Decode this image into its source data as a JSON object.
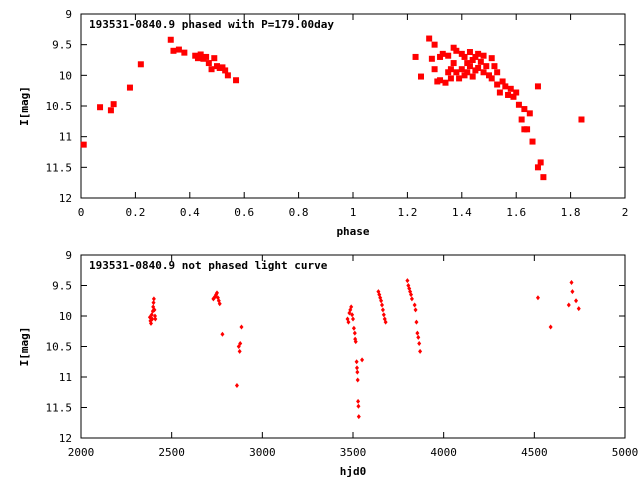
{
  "chart_data": [
    {
      "type": "scatter",
      "title": "193531-0840.9 phased with P=179.00day",
      "xlabel": "phase",
      "ylabel": "I[mag]",
      "xlim": [
        0,
        2
      ],
      "ylim": [
        12,
        9
      ],
      "y_inverted": true,
      "xticks": [
        "0",
        "0.2",
        "0.4",
        "0.6",
        "0.8",
        "1",
        "1.2",
        "1.4",
        "1.6",
        "1.8",
        "2"
      ],
      "yticks": [
        "9",
        "9.5",
        "10",
        "10.5",
        "11",
        "11.5",
        "12"
      ],
      "marker_color": "#ff0000",
      "points": [
        [
          0.01,
          11.13
        ],
        [
          0.07,
          10.52
        ],
        [
          0.11,
          10.57
        ],
        [
          0.12,
          10.47
        ],
        [
          0.18,
          10.2
        ],
        [
          0.22,
          9.82
        ],
        [
          0.33,
          9.42
        ],
        [
          0.34,
          9.6
        ],
        [
          0.36,
          9.58
        ],
        [
          0.38,
          9.63
        ],
        [
          0.42,
          9.68
        ],
        [
          0.43,
          9.72
        ],
        [
          0.44,
          9.66
        ],
        [
          0.45,
          9.73
        ],
        [
          0.46,
          9.7
        ],
        [
          0.47,
          9.8
        ],
        [
          0.48,
          9.9
        ],
        [
          0.49,
          9.72
        ],
        [
          0.5,
          9.85
        ],
        [
          0.51,
          9.88
        ],
        [
          0.52,
          9.87
        ],
        [
          0.53,
          9.92
        ],
        [
          0.54,
          10.0
        ],
        [
          0.57,
          10.08
        ],
        [
          1.23,
          9.7
        ],
        [
          1.25,
          10.02
        ],
        [
          1.28,
          9.4
        ],
        [
          1.29,
          9.73
        ],
        [
          1.3,
          9.5
        ],
        [
          1.3,
          9.9
        ],
        [
          1.31,
          10.1
        ],
        [
          1.32,
          9.7
        ],
        [
          1.32,
          10.08
        ],
        [
          1.33,
          9.65
        ],
        [
          1.34,
          10.12
        ],
        [
          1.35,
          9.68
        ],
        [
          1.35,
          9.95
        ],
        [
          1.36,
          9.9
        ],
        [
          1.36,
          10.05
        ],
        [
          1.37,
          9.55
        ],
        [
          1.37,
          9.8
        ],
        [
          1.38,
          9.6
        ],
        [
          1.38,
          9.95
        ],
        [
          1.39,
          10.05
        ],
        [
          1.4,
          9.65
        ],
        [
          1.4,
          9.9
        ],
        [
          1.41,
          9.7
        ],
        [
          1.41,
          10.0
        ],
        [
          1.42,
          9.8
        ],
        [
          1.42,
          9.95
        ],
        [
          1.43,
          9.62
        ],
        [
          1.43,
          9.85
        ],
        [
          1.44,
          9.75
        ],
        [
          1.44,
          10.02
        ],
        [
          1.45,
          9.7
        ],
        [
          1.45,
          9.92
        ],
        [
          1.46,
          9.65
        ],
        [
          1.46,
          9.88
        ],
        [
          1.47,
          9.78
        ],
        [
          1.48,
          9.95
        ],
        [
          1.48,
          9.68
        ],
        [
          1.49,
          9.85
        ],
        [
          1.5,
          10.0
        ],
        [
          1.51,
          9.72
        ],
        [
          1.51,
          10.05
        ],
        [
          1.52,
          9.85
        ],
        [
          1.53,
          10.15
        ],
        [
          1.53,
          9.95
        ],
        [
          1.54,
          10.28
        ],
        [
          1.55,
          10.1
        ],
        [
          1.56,
          10.18
        ],
        [
          1.57,
          10.32
        ],
        [
          1.58,
          10.22
        ],
        [
          1.59,
          10.35
        ],
        [
          1.6,
          10.28
        ],
        [
          1.61,
          10.48
        ],
        [
          1.62,
          10.72
        ],
        [
          1.63,
          10.55
        ],
        [
          1.63,
          10.88
        ],
        [
          1.64,
          10.88
        ],
        [
          1.65,
          10.62
        ],
        [
          1.66,
          11.08
        ],
        [
          1.68,
          11.5
        ],
        [
          1.68,
          10.18
        ],
        [
          1.69,
          11.42
        ],
        [
          1.7,
          11.66
        ],
        [
          1.84,
          10.72
        ]
      ]
    },
    {
      "type": "scatter",
      "title": "193531-0840.9 not phased light curve",
      "xlabel": "hjd0",
      "ylabel": "I[mag]",
      "xlim": [
        2000,
        5000
      ],
      "ylim": [
        12,
        9
      ],
      "y_inverted": true,
      "xticks": [
        "2000",
        "2500",
        "3000",
        "3500",
        "4000",
        "4500",
        "5000"
      ],
      "yticks": [
        "9",
        "9.5",
        "10",
        "10.5",
        "11",
        "11.5",
        "12"
      ],
      "marker_color": "#ff0000",
      "points": [
        [
          2380,
          10.02
        ],
        [
          2383,
          10.08
        ],
        [
          2386,
          10.12
        ],
        [
          2390,
          9.98
        ],
        [
          2393,
          10.05
        ],
        [
          2396,
          9.92
        ],
        [
          2398,
          9.85
        ],
        [
          2400,
          9.78
        ],
        [
          2402,
          9.72
        ],
        [
          2405,
          9.9
        ],
        [
          2408,
          10.0
        ],
        [
          2410,
          10.05
        ],
        [
          2730,
          9.72
        ],
        [
          2735,
          9.7
        ],
        [
          2740,
          9.68
        ],
        [
          2745,
          9.65
        ],
        [
          2750,
          9.62
        ],
        [
          2755,
          9.7
        ],
        [
          2760,
          9.75
        ],
        [
          2765,
          9.8
        ],
        [
          2780,
          10.3
        ],
        [
          2860,
          11.14
        ],
        [
          2870,
          10.5
        ],
        [
          2875,
          10.58
        ],
        [
          2878,
          10.45
        ],
        [
          2885,
          10.18
        ],
        [
          3470,
          10.05
        ],
        [
          3475,
          10.1
        ],
        [
          3480,
          9.95
        ],
        [
          3485,
          9.9
        ],
        [
          3490,
          9.85
        ],
        [
          3495,
          9.98
        ],
        [
          3500,
          10.05
        ],
        [
          3505,
          10.2
        ],
        [
          3510,
          10.28
        ],
        [
          3512,
          10.38
        ],
        [
          3515,
          10.42
        ],
        [
          3520,
          10.75
        ],
        [
          3522,
          10.85
        ],
        [
          3524,
          10.92
        ],
        [
          3526,
          11.05
        ],
        [
          3528,
          11.4
        ],
        [
          3530,
          11.48
        ],
        [
          3532,
          11.65
        ],
        [
          3550,
          10.72
        ],
        [
          3640,
          9.6
        ],
        [
          3645,
          9.65
        ],
        [
          3650,
          9.7
        ],
        [
          3655,
          9.75
        ],
        [
          3660,
          9.82
        ],
        [
          3665,
          9.9
        ],
        [
          3670,
          9.98
        ],
        [
          3675,
          10.05
        ],
        [
          3680,
          10.1
        ],
        [
          3800,
          9.42
        ],
        [
          3805,
          9.5
        ],
        [
          3810,
          9.55
        ],
        [
          3815,
          9.6
        ],
        [
          3820,
          9.65
        ],
        [
          3825,
          9.72
        ],
        [
          3840,
          9.82
        ],
        [
          3845,
          9.9
        ],
        [
          3850,
          10.1
        ],
        [
          3855,
          10.28
        ],
        [
          3860,
          10.35
        ],
        [
          3865,
          10.45
        ],
        [
          3870,
          10.58
        ],
        [
          4520,
          9.7
        ],
        [
          4590,
          10.18
        ],
        [
          4690,
          9.82
        ],
        [
          4705,
          9.45
        ],
        [
          4710,
          9.6
        ],
        [
          4730,
          9.75
        ],
        [
          4745,
          9.88
        ]
      ]
    }
  ]
}
